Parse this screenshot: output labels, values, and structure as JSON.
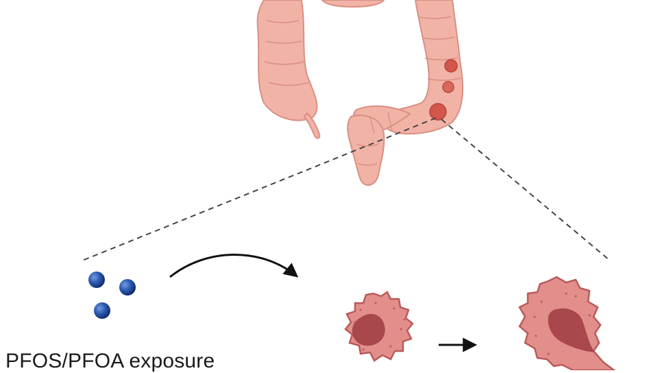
{
  "figure": {
    "exposure_label": "PFOS/PFOA exposure",
    "colors": {
      "colon_fill": "#f2b3a7",
      "colon_stroke": "#d98f82",
      "polyp": "#d2564b",
      "cell_fill": "#e28f8c",
      "cell_stroke": "#b95a59",
      "nucleus": "#a8474c",
      "particle": "#1f4c9c",
      "dashed_line": "#444444",
      "arrow": "#111111"
    },
    "icons": [
      "colon-icon",
      "particle-icon",
      "cell-icon",
      "arrow-icon"
    ]
  }
}
